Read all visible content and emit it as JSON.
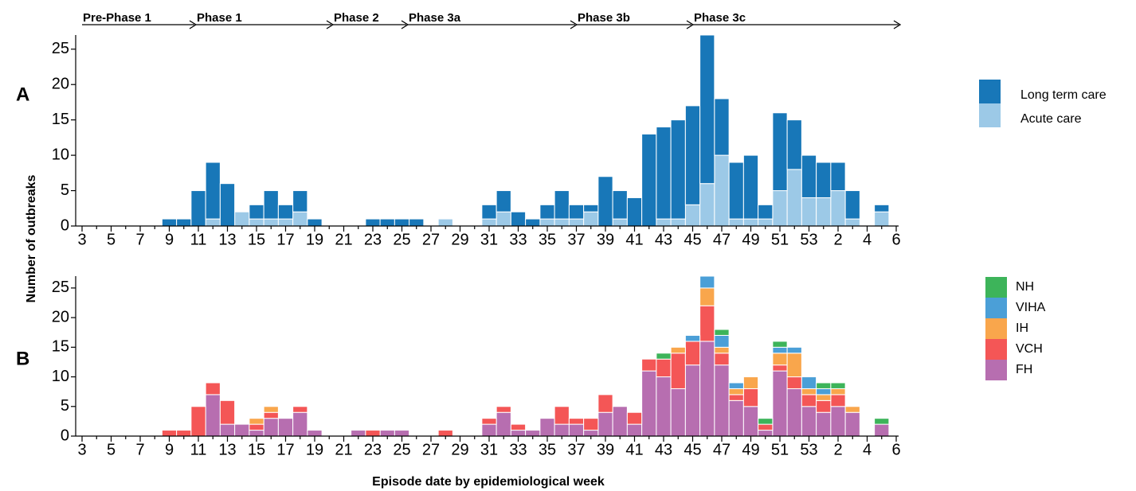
{
  "chart_data": [
    {
      "type": "bar",
      "stacked": true,
      "panel": "A",
      "y_label": "Number of outbreaks",
      "annotations": [
        "Pre-Phase 1",
        "Phase 1",
        "Phase 2",
        "Phase 3a",
        "Phase 3b",
        "Phase 3c"
      ],
      "categories": [
        "3",
        null,
        "5",
        null,
        "7",
        null,
        "9",
        null,
        "11",
        null,
        "13",
        null,
        "15",
        null,
        "17",
        null,
        "19",
        null,
        "21",
        null,
        "23",
        null,
        "25",
        null,
        "27",
        null,
        "29",
        null,
        "31",
        null,
        "33",
        null,
        "35",
        null,
        "37",
        null,
        "39",
        null,
        "41",
        null,
        "43",
        null,
        "45",
        null,
        "47",
        null,
        "49",
        null,
        "51",
        null,
        "53",
        null,
        "2",
        null,
        "4",
        null,
        "6"
      ],
      "series": [
        {
          "name": "Acute care",
          "color": "#9cc9e7",
          "values": [
            0,
            0,
            0,
            0,
            0,
            0,
            0,
            0,
            0,
            1,
            0,
            2,
            1,
            1,
            1,
            2,
            0,
            0,
            0,
            0,
            0,
            0,
            0,
            0,
            0,
            1,
            0,
            0,
            1,
            2,
            0,
            0,
            1,
            1,
            1,
            2,
            0,
            1,
            0,
            0,
            1,
            1,
            3,
            6,
            10,
            1,
            1,
            1,
            5,
            8,
            4,
            4,
            5,
            1,
            0,
            2,
            0
          ]
        },
        {
          "name": "Long term care",
          "color": "#1877b8",
          "values": [
            0,
            0,
            0,
            0,
            0,
            0,
            1,
            1,
            5,
            8,
            6,
            0,
            2,
            4,
            2,
            3,
            1,
            0,
            0,
            0,
            1,
            1,
            1,
            1,
            0,
            0,
            0,
            0,
            2,
            3,
            2,
            1,
            2,
            4,
            2,
            1,
            7,
            4,
            4,
            13,
            13,
            14,
            14,
            21,
            8,
            8,
            9,
            2,
            11,
            7,
            6,
            5,
            4,
            4,
            0,
            1,
            0
          ]
        }
      ],
      "legend": "right",
      "ylim": [
        0,
        27
      ],
      "yticks": [
        0,
        5,
        10,
        15,
        20,
        25
      ]
    },
    {
      "type": "bar",
      "stacked": true,
      "panel": "B",
      "x_label": "Episode date by epidemiological week",
      "categories": [
        "3",
        null,
        "5",
        null,
        "7",
        null,
        "9",
        null,
        "11",
        null,
        "13",
        null,
        "15",
        null,
        "17",
        null,
        "19",
        null,
        "21",
        null,
        "23",
        null,
        "25",
        null,
        "27",
        null,
        "29",
        null,
        "31",
        null,
        "33",
        null,
        "35",
        null,
        "37",
        null,
        "39",
        null,
        "41",
        null,
        "43",
        null,
        "45",
        null,
        "47",
        null,
        "49",
        null,
        "51",
        null,
        "53",
        null,
        "2",
        null,
        "4",
        null,
        "6"
      ],
      "series": [
        {
          "name": "FH",
          "color": "#b76eb0",
          "values": [
            0,
            0,
            0,
            0,
            0,
            0,
            0,
            0,
            0,
            7,
            2,
            2,
            1,
            3,
            3,
            4,
            1,
            0,
            0,
            1,
            0,
            1,
            1,
            0,
            0,
            0,
            0,
            0,
            2,
            4,
            1,
            1,
            3,
            2,
            2,
            1,
            4,
            5,
            2,
            11,
            10,
            8,
            12,
            16,
            12,
            6,
            5,
            1,
            11,
            8,
            5,
            4,
            5,
            4,
            0,
            2,
            0
          ]
        },
        {
          "name": "VCH",
          "color": "#f45656",
          "values": [
            0,
            0,
            0,
            0,
            0,
            0,
            1,
            1,
            5,
            2,
            4,
            0,
            1,
            1,
            0,
            1,
            0,
            0,
            0,
            0,
            1,
            0,
            0,
            0,
            0,
            1,
            0,
            0,
            1,
            1,
            1,
            0,
            0,
            3,
            1,
            2,
            3,
            0,
            2,
            2,
            3,
            6,
            4,
            6,
            2,
            1,
            3,
            1,
            1,
            2,
            2,
            2,
            2,
            0,
            0,
            0,
            0
          ]
        },
        {
          "name": "IH",
          "color": "#f9a64c",
          "values": [
            0,
            0,
            0,
            0,
            0,
            0,
            0,
            0,
            0,
            0,
            0,
            0,
            1,
            1,
            0,
            0,
            0,
            0,
            0,
            0,
            0,
            0,
            0,
            0,
            0,
            0,
            0,
            0,
            0,
            0,
            0,
            0,
            0,
            0,
            0,
            0,
            0,
            0,
            0,
            0,
            0,
            1,
            0,
            3,
            1,
            1,
            2,
            0,
            2,
            4,
            1,
            1,
            1,
            1,
            0,
            0,
            0
          ]
        },
        {
          "name": "VIHA",
          "color": "#4b9fd7",
          "values": [
            0,
            0,
            0,
            0,
            0,
            0,
            0,
            0,
            0,
            0,
            0,
            0,
            0,
            0,
            0,
            0,
            0,
            0,
            0,
            0,
            0,
            0,
            0,
            0,
            0,
            0,
            0,
            0,
            0,
            0,
            0,
            0,
            0,
            0,
            0,
            0,
            0,
            0,
            0,
            0,
            0,
            0,
            1,
            2,
            2,
            1,
            0,
            0,
            1,
            1,
            2,
            1,
            0,
            0,
            0,
            0,
            0
          ]
        },
        {
          "name": "NH",
          "color": "#3db45a",
          "values": [
            0,
            0,
            0,
            0,
            0,
            0,
            0,
            0,
            0,
            0,
            0,
            0,
            0,
            0,
            0,
            0,
            0,
            0,
            0,
            0,
            0,
            0,
            0,
            0,
            0,
            0,
            0,
            0,
            0,
            0,
            0,
            0,
            0,
            0,
            0,
            0,
            0,
            0,
            0,
            0,
            1,
            0,
            0,
            0,
            1,
            0,
            0,
            1,
            1,
            0,
            0,
            1,
            1,
            0,
            0,
            1,
            0
          ]
        }
      ],
      "legend": "right",
      "ylim": [
        0,
        27
      ],
      "yticks": [
        0,
        5,
        10,
        15,
        20,
        25
      ]
    }
  ]
}
